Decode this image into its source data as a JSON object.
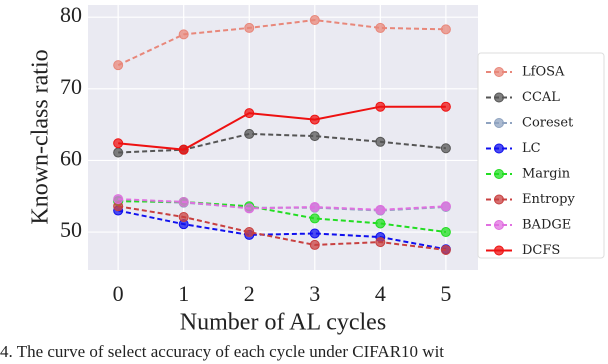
{
  "chart_data": {
    "type": "line",
    "x": [
      0,
      1,
      2,
      3,
      4,
      5
    ],
    "xlim": [
      -0.46,
      5.49
    ],
    "xticks": [
      0,
      1,
      2,
      3,
      4,
      5
    ],
    "ylim": [
      44.7,
      81.7
    ],
    "yticks": [
      50,
      60,
      70,
      80
    ],
    "xlabel": "Number of AL cycles",
    "ylabel": "Known-class ratio",
    "grid": true,
    "legend": "right",
    "series": [
      {
        "name": "LfOSA",
        "color": "#e8877a",
        "linestyle": "dashed",
        "values": [
          73.3,
          77.6,
          78.5,
          79.6,
          78.5,
          78.3
        ]
      },
      {
        "name": "CCAL",
        "color": "#555555",
        "linestyle": "dashed",
        "values": [
          61.1,
          61.5,
          63.7,
          63.4,
          62.6,
          61.7
        ]
      },
      {
        "name": "Coreset",
        "color": "#8fa3c0",
        "linestyle": "dashed",
        "values": [
          54.4,
          54.1,
          53.4,
          53.4,
          53.0,
          53.5
        ]
      },
      {
        "name": "LC",
        "color": "#1010ee",
        "linestyle": "dashed",
        "values": [
          53.0,
          51.1,
          49.6,
          49.8,
          49.3,
          47.6
        ]
      },
      {
        "name": "Margin",
        "color": "#22dd22",
        "linestyle": "dashed",
        "values": [
          54.3,
          54.2,
          53.6,
          51.9,
          51.2,
          50.0
        ]
      },
      {
        "name": "Entropy",
        "color": "#c84040",
        "linestyle": "dashed",
        "values": [
          53.6,
          52.1,
          50.0,
          48.2,
          48.6,
          47.5
        ]
      },
      {
        "name": "BADGE",
        "color": "#e070e0",
        "linestyle": "dashed",
        "values": [
          54.6,
          54.2,
          53.3,
          53.5,
          53.1,
          53.6
        ]
      },
      {
        "name": "DCFS",
        "color": "#ee1111",
        "linestyle": "solid",
        "values": [
          62.4,
          61.5,
          66.6,
          65.7,
          67.5,
          67.5
        ]
      }
    ]
  },
  "caption": "4.  The curve of select accuracy of each cycle under CIFAR10 wit"
}
